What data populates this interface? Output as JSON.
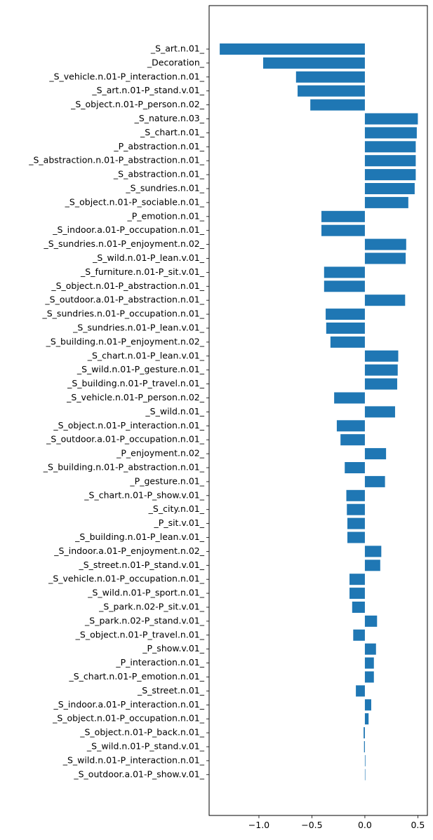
{
  "chart_data": {
    "type": "bar",
    "orientation": "horizontal",
    "title": "",
    "xlabel": "",
    "ylabel": "",
    "xlim": [
      -1.47,
      0.59
    ],
    "xticks": [
      -1.0,
      -0.5,
      0.0,
      0.5
    ],
    "xtick_labels": [
      "−1.0",
      "−0.5",
      "0.0",
      "0.5"
    ],
    "grid": false,
    "color": "#1f77b4",
    "categories": [
      "_S_art.n.01_",
      "_Decoration_",
      "_S_vehicle.n.01-P_interaction.n.01_",
      "_S_art.n.01-P_stand.v.01_",
      "_S_object.n.01-P_person.n.02_",
      "_S_nature.n.03_",
      "_S_chart.n.01_",
      "_P_abstraction.n.01_",
      "_S_abstraction.n.01-P_abstraction.n.01_",
      "_S_abstraction.n.01_",
      "_S_sundries.n.01_",
      "_S_object.n.01-P_sociable.n.01_",
      "_P_emotion.n.01_",
      "_S_indoor.a.01-P_occupation.n.01_",
      "_S_sundries.n.01-P_enjoyment.n.02_",
      "_S_wild.n.01-P_lean.v.01_",
      "_S_furniture.n.01-P_sit.v.01_",
      "_S_object.n.01-P_abstraction.n.01_",
      "_S_outdoor.a.01-P_abstraction.n.01_",
      "_S_sundries.n.01-P_occupation.n.01_",
      "_S_sundries.n.01-P_lean.v.01_",
      "_S_building.n.01-P_enjoyment.n.02_",
      "_S_chart.n.01-P_lean.v.01_",
      "_S_wild.n.01-P_gesture.n.01_",
      "_S_building.n.01-P_travel.n.01_",
      "_S_vehicle.n.01-P_person.n.02_",
      "_S_wild.n.01_",
      "_S_object.n.01-P_interaction.n.01_",
      "_S_outdoor.a.01-P_occupation.n.01_",
      "_P_enjoyment.n.02_",
      "_S_building.n.01-P_abstraction.n.01_",
      "_P_gesture.n.01_",
      "_S_chart.n.01-P_show.v.01_",
      "_S_city.n.01_",
      "_P_sit.v.01_",
      "_S_building.n.01-P_lean.v.01_",
      "_S_indoor.a.01-P_enjoyment.n.02_",
      "_S_street.n.01-P_stand.v.01_",
      "_S_vehicle.n.01-P_occupation.n.01_",
      "_S_wild.n.01-P_sport.n.01_",
      "_S_park.n.02-P_sit.v.01_",
      "_S_park.n.02-P_stand.v.01_",
      "_S_object.n.01-P_travel.n.01_",
      "_P_show.v.01_",
      "_P_interaction.n.01_",
      "_S_chart.n.01-P_emotion.n.01_",
      "_S_street.n.01_",
      "_S_indoor.a.01-P_interaction.n.01_",
      "_S_object.n.01-P_occupation.n.01_",
      "_S_object.n.01-P_back.n.01_",
      "_S_wild.n.01-P_stand.v.01_",
      "_S_wild.n.01-P_interaction.n.01_",
      "_S_outdoor.a.01-P_show.v.01_"
    ],
    "values": [
      -1.37,
      -0.96,
      -0.65,
      -0.635,
      -0.515,
      0.5,
      0.49,
      0.48,
      0.48,
      0.48,
      0.47,
      0.41,
      -0.41,
      -0.41,
      0.39,
      0.385,
      -0.385,
      -0.385,
      0.38,
      -0.37,
      -0.365,
      -0.325,
      0.315,
      0.31,
      0.305,
      -0.29,
      0.285,
      -0.265,
      -0.23,
      0.2,
      -0.19,
      0.19,
      -0.175,
      -0.17,
      -0.165,
      -0.165,
      0.155,
      0.145,
      -0.145,
      -0.145,
      -0.12,
      0.115,
      -0.11,
      0.105,
      0.085,
      0.085,
      -0.085,
      0.06,
      0.035,
      -0.012,
      -0.008,
      0.005,
      0.0
    ]
  }
}
